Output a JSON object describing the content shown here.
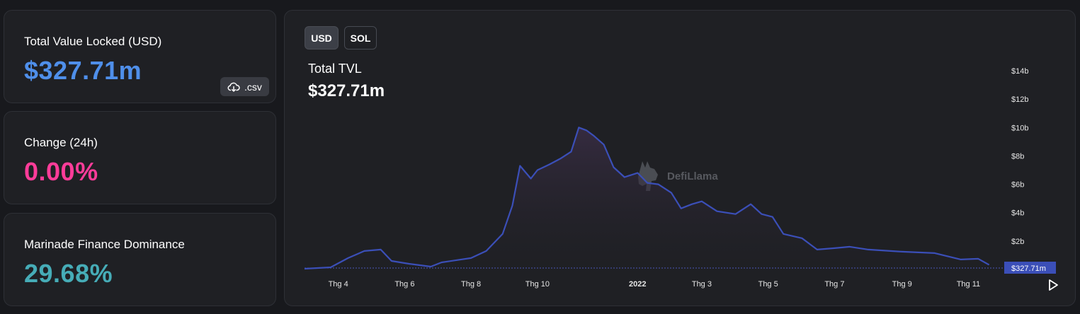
{
  "stats": {
    "tvl": {
      "label": "Total Value Locked (USD)",
      "value": "$327.71m",
      "csv_label": ".csv"
    },
    "change": {
      "label": "Change (24h)",
      "value": "0.00%"
    },
    "dominance": {
      "label": "Marinade Finance Dominance",
      "value": "29.68%"
    }
  },
  "colors": {
    "tvl_value": "#4f8fea",
    "change_value": "#fd3c99",
    "dominance_value": "#46acb7",
    "line": "#3b4fb8"
  },
  "chart": {
    "toggles": [
      {
        "label": "USD",
        "active": true
      },
      {
        "label": "SOL",
        "active": false
      }
    ],
    "title": "Total TVL",
    "value": "$327.71m",
    "watermark": "DefiLlama",
    "current_label": "$327.71m"
  },
  "chart_data": {
    "type": "area",
    "title": "Total TVL",
    "y_ticks": [
      "$2b",
      "$4b",
      "$6b",
      "$8b",
      "$10b",
      "$12b",
      "$14b"
    ],
    "y_tick_values": [
      2,
      4,
      6,
      8,
      10,
      12,
      14
    ],
    "ylim": [
      0,
      14
    ],
    "x_ticks": [
      "Thg 4",
      "Thg 6",
      "Thg 8",
      "Thg 10",
      "2022",
      "Thg 3",
      "Thg 5",
      "Thg 7",
      "Thg 9",
      "Thg 11"
    ],
    "x_tick_dates": [
      "2021-04-01",
      "2021-06-01",
      "2021-08-01",
      "2021-10-01",
      "2022-01-01",
      "2022-03-01",
      "2022-05-01",
      "2022-07-01",
      "2022-09-01",
      "2022-11-01"
    ],
    "xlim": [
      "2021-03-01",
      "2022-11-30"
    ],
    "series": [
      {
        "values": [
          {
            "x": "2021-03-01",
            "y": 0.05
          },
          {
            "x": "2021-03-25",
            "y": 0.15
          },
          {
            "x": "2021-04-10",
            "y": 0.8
          },
          {
            "x": "2021-04-25",
            "y": 1.3
          },
          {
            "x": "2021-05-10",
            "y": 1.4
          },
          {
            "x": "2021-05-20",
            "y": 0.6
          },
          {
            "x": "2021-06-05",
            "y": 0.4
          },
          {
            "x": "2021-06-25",
            "y": 0.2
          },
          {
            "x": "2021-07-05",
            "y": 0.5
          },
          {
            "x": "2021-08-01",
            "y": 0.8
          },
          {
            "x": "2021-08-15",
            "y": 1.3
          },
          {
            "x": "2021-08-30",
            "y": 2.5
          },
          {
            "x": "2021-09-08",
            "y": 4.5
          },
          {
            "x": "2021-09-15",
            "y": 7.3
          },
          {
            "x": "2021-09-25",
            "y": 6.4
          },
          {
            "x": "2021-10-01",
            "y": 7.0
          },
          {
            "x": "2021-10-12",
            "y": 7.4
          },
          {
            "x": "2021-10-22",
            "y": 7.8
          },
          {
            "x": "2021-11-01",
            "y": 8.3
          },
          {
            "x": "2021-11-08",
            "y": 10.0
          },
          {
            "x": "2021-11-15",
            "y": 9.8
          },
          {
            "x": "2021-11-22",
            "y": 9.4
          },
          {
            "x": "2021-12-01",
            "y": 8.8
          },
          {
            "x": "2021-12-10",
            "y": 7.2
          },
          {
            "x": "2021-12-20",
            "y": 6.5
          },
          {
            "x": "2022-01-01",
            "y": 6.8
          },
          {
            "x": "2022-01-10",
            "y": 6.1
          },
          {
            "x": "2022-01-20",
            "y": 6.0
          },
          {
            "x": "2022-02-01",
            "y": 5.4
          },
          {
            "x": "2022-02-10",
            "y": 4.3
          },
          {
            "x": "2022-02-20",
            "y": 4.6
          },
          {
            "x": "2022-03-01",
            "y": 4.8
          },
          {
            "x": "2022-03-15",
            "y": 4.1
          },
          {
            "x": "2022-04-01",
            "y": 3.9
          },
          {
            "x": "2022-04-15",
            "y": 4.6
          },
          {
            "x": "2022-04-25",
            "y": 3.9
          },
          {
            "x": "2022-05-05",
            "y": 3.7
          },
          {
            "x": "2022-05-15",
            "y": 2.5
          },
          {
            "x": "2022-06-01",
            "y": 2.2
          },
          {
            "x": "2022-06-15",
            "y": 1.4
          },
          {
            "x": "2022-07-01",
            "y": 1.5
          },
          {
            "x": "2022-07-15",
            "y": 1.6
          },
          {
            "x": "2022-08-01",
            "y": 1.4
          },
          {
            "x": "2022-09-01",
            "y": 1.25
          },
          {
            "x": "2022-10-01",
            "y": 1.15
          },
          {
            "x": "2022-10-25",
            "y": 0.7
          },
          {
            "x": "2022-11-10",
            "y": 0.75
          },
          {
            "x": "2022-11-20",
            "y": 0.33
          }
        ]
      }
    ]
  }
}
